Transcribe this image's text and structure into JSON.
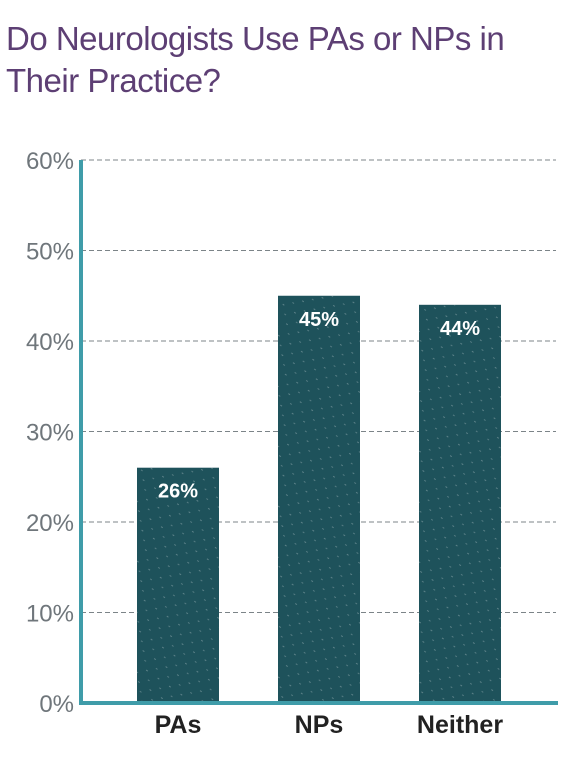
{
  "chart_data": {
    "type": "bar",
    "title": "Do Neurologists Use PAs or NPs in Their Practice?",
    "categories": [
      "PAs",
      "NPs",
      "Neither"
    ],
    "values": [
      26,
      45,
      44
    ],
    "data_labels": [
      "26%",
      "45%",
      "44%"
    ],
    "ylim": [
      0,
      60
    ],
    "yticks": [
      0,
      10,
      20,
      30,
      40,
      50,
      60
    ],
    "ytick_labels": [
      "0%",
      "10%",
      "20%",
      "30%",
      "40%",
      "50%",
      "60%"
    ],
    "xlabel": "",
    "ylabel": "",
    "grid": "horizontal dashed",
    "legend": "none"
  },
  "colors": {
    "title": "#5d3f74",
    "bar": "#1e525b",
    "axis": "#3f9ca9",
    "grid": "#7c8488",
    "tick_label": "#6f767b",
    "category_label": "#222222",
    "data_label": "#ffffff"
  }
}
